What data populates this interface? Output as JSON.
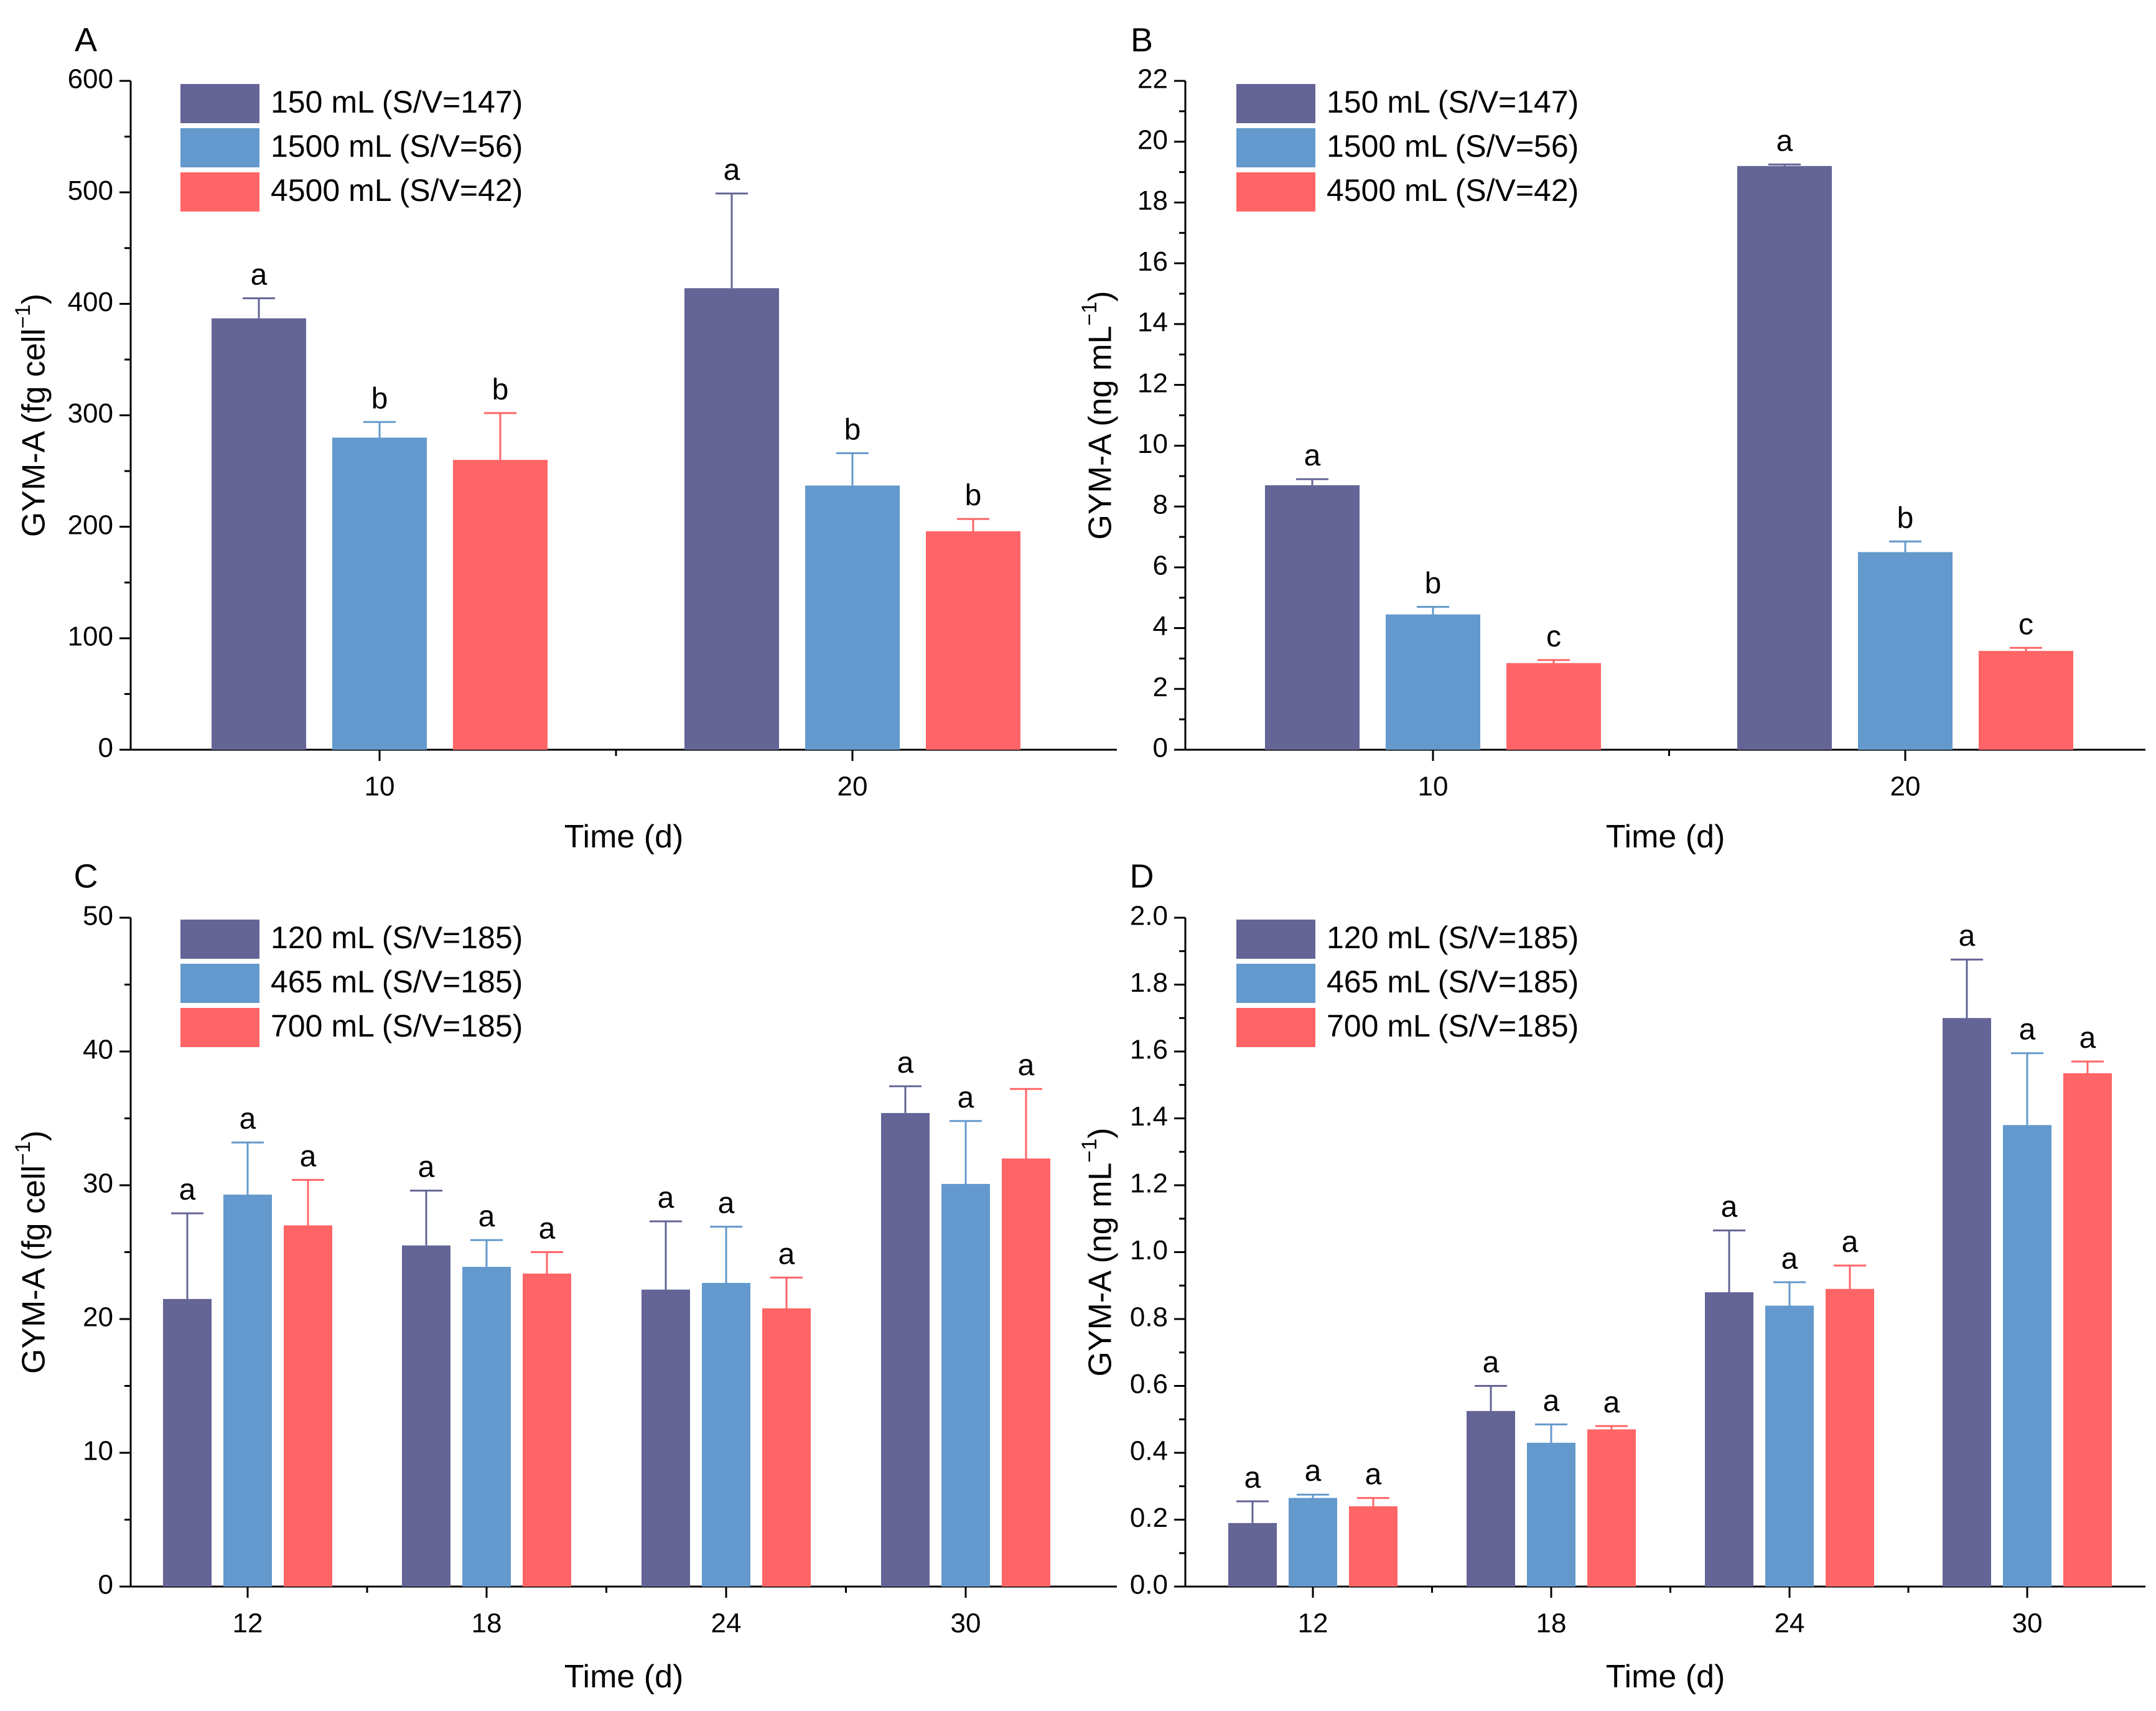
{
  "chart_data": [
    {
      "type": "bar",
      "panel": "A",
      "ylabel": "GYM-A (fg cell",
      "ylabel_sup": "−1",
      "ylabel_close": ")",
      "xlabel": "Time (d)",
      "ylim": [
        0,
        600
      ],
      "ytick_step": 100,
      "ytick_decimals": 0,
      "categories": [
        "10",
        "20"
      ],
      "series": [
        {
          "name": "150 mL (S/V=147)",
          "color": "#646496",
          "values": [
            387,
            414
          ],
          "errors": [
            18,
            85
          ],
          "labels": [
            "a",
            "a"
          ]
        },
        {
          "name": "1500 mL (S/V=56)",
          "color": "#6399cc",
          "values": [
            280,
            237
          ],
          "errors": [
            14,
            29
          ],
          "labels": [
            "b",
            "b"
          ]
        },
        {
          "name": "4500 mL (S/V=42)",
          "color": "#ff6466",
          "values": [
            260,
            196
          ],
          "errors": [
            42,
            11
          ],
          "labels": [
            "b",
            "b"
          ]
        }
      ]
    },
    {
      "type": "bar",
      "panel": "B",
      "ylabel": "GYM-A (ng mL",
      "ylabel_sup": "−1",
      "ylabel_close": ")",
      "xlabel": "Time (d)",
      "ylim": [
        0,
        22
      ],
      "ytick_step": 2,
      "ytick_decimals": 0,
      "categories": [
        "10",
        "20"
      ],
      "series": [
        {
          "name": "150 mL (S/V=147)",
          "color": "#646496",
          "values": [
            8.7,
            19.2
          ],
          "errors": [
            0.2,
            0.05
          ],
          "labels": [
            "a",
            "a"
          ]
        },
        {
          "name": "1500 mL (S/V=56)",
          "color": "#6399cc",
          "values": [
            4.45,
            6.5
          ],
          "errors": [
            0.25,
            0.35
          ],
          "labels": [
            "b",
            "b"
          ]
        },
        {
          "name": "4500 mL (S/V=42)",
          "color": "#ff6466",
          "values": [
            2.85,
            3.25
          ],
          "errors": [
            0.1,
            0.1
          ],
          "labels": [
            "c",
            "c"
          ]
        }
      ]
    },
    {
      "type": "bar",
      "panel": "C",
      "ylabel": "GYM-A (fg cell",
      "ylabel_sup": "−1",
      "ylabel_close": ")",
      "xlabel": "Time (d)",
      "ylim": [
        0,
        50
      ],
      "ytick_step": 10,
      "ytick_decimals": 0,
      "categories": [
        "12",
        "18",
        "24",
        "30"
      ],
      "series": [
        {
          "name": "120 mL (S/V=185)",
          "color": "#646496",
          "values": [
            21.5,
            25.5,
            22.2,
            35.4
          ],
          "errors": [
            6.4,
            4.1,
            5.1,
            2.0
          ],
          "labels": [
            "a",
            "a",
            "a",
            "a"
          ]
        },
        {
          "name": "465 mL (S/V=185)",
          "color": "#6399cc",
          "values": [
            29.3,
            23.9,
            22.7,
            30.1
          ],
          "errors": [
            3.9,
            2.0,
            4.2,
            4.7
          ],
          "labels": [
            "a",
            "a",
            "a",
            "a"
          ]
        },
        {
          "name": "700 mL (S/V=185)",
          "color": "#ff6466",
          "values": [
            27.0,
            23.4,
            20.8,
            32.0
          ],
          "errors": [
            3.4,
            1.6,
            2.3,
            5.2
          ],
          "labels": [
            "a",
            "a",
            "a",
            "a"
          ]
        }
      ]
    },
    {
      "type": "bar",
      "panel": "D",
      "ylabel": "GYM-A (ng mL",
      "ylabel_sup": "−1",
      "ylabel_close": ")",
      "xlabel": "Time (d)",
      "ylim": [
        0,
        2.0
      ],
      "ytick_step": 0.2,
      "ytick_decimals": 1,
      "categories": [
        "12",
        "18",
        "24",
        "30"
      ],
      "series": [
        {
          "name": "120 mL (S/V=185)",
          "color": "#646496",
          "values": [
            0.19,
            0.525,
            0.88,
            1.7
          ],
          "errors": [
            0.065,
            0.075,
            0.185,
            0.175
          ],
          "labels": [
            "a",
            "a",
            "a",
            "a"
          ]
        },
        {
          "name": "465 mL (S/V=185)",
          "color": "#6399cc",
          "values": [
            0.265,
            0.43,
            0.84,
            1.38
          ],
          "errors": [
            0.01,
            0.055,
            0.07,
            0.215
          ],
          "labels": [
            "a",
            "a",
            "a",
            "a"
          ]
        },
        {
          "name": "700 mL (S/V=185)",
          "color": "#ff6466",
          "values": [
            0.24,
            0.47,
            0.89,
            1.535
          ],
          "errors": [
            0.025,
            0.01,
            0.07,
            0.035
          ],
          "labels": [
            "a",
            "a",
            "a",
            "a"
          ]
        }
      ]
    }
  ]
}
